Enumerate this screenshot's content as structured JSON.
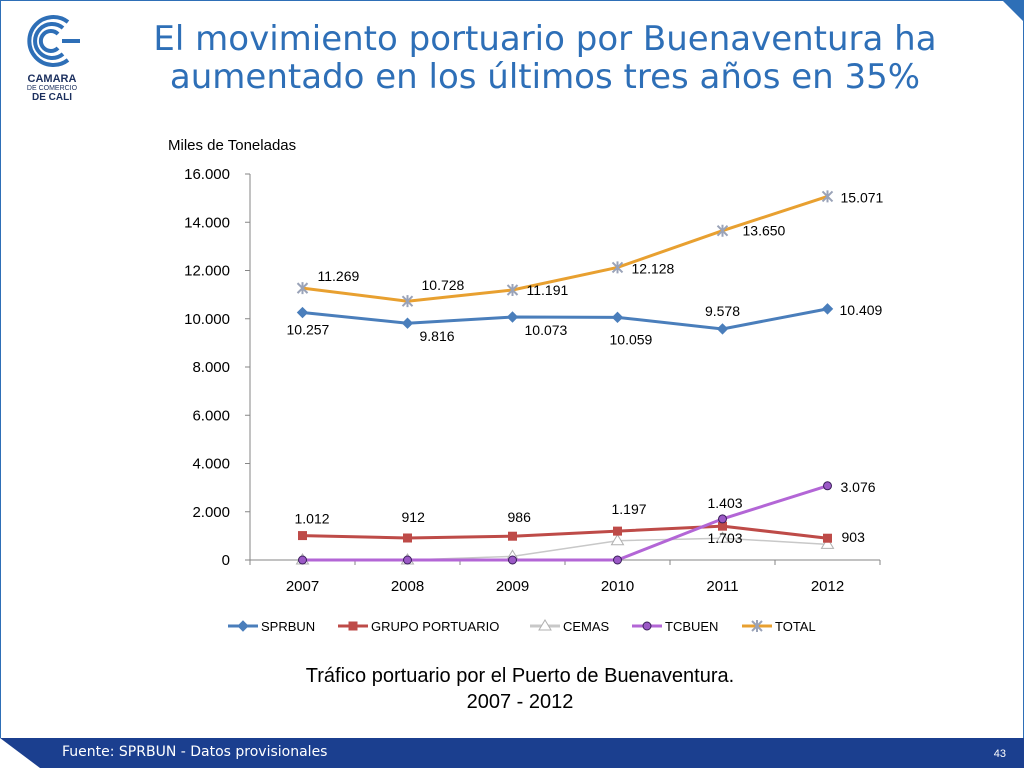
{
  "slide": {
    "title_line1": "El movimiento portuario por Buenaventura ha",
    "title_line2": "aumentado en los últimos tres años en 35%",
    "unit_label": "Miles de Toneladas",
    "caption_line1": "Tráfico portuario por el Puerto de Buenaventura.",
    "caption_line2": "2007 - 2012",
    "source": "Fuente: SPRBUN - Datos provisionales",
    "page_number": "43",
    "logo": {
      "line1": "CAMARA",
      "line2": "DE COMERCIO",
      "line3": "DE CALI"
    }
  },
  "colors": {
    "title": "#2e6fb7",
    "footer": "#1b3f8f"
  },
  "chart_data": {
    "type": "line",
    "ylabel": "Miles de Toneladas",
    "ylim": [
      0,
      16000
    ],
    "yticks": [
      0,
      2000,
      4000,
      6000,
      8000,
      10000,
      12000,
      14000,
      16000
    ],
    "ytick_labels": [
      "0",
      "2.000",
      "4.000",
      "6.000",
      "8.000",
      "10.000",
      "12.000",
      "14.000",
      "16.000"
    ],
    "x": [
      "2007",
      "2008",
      "2009",
      "2010",
      "2011",
      "2012"
    ],
    "legend_position": "bottom",
    "series": [
      {
        "name": "SPRBUN",
        "color": "#4a7ebb",
        "marker": "diamond",
        "values": [
          10257,
          9816,
          10073,
          10059,
          9578,
          10409
        ],
        "labels": [
          "10.257",
          "9.816",
          "10.073",
          "10.059",
          "9.578",
          "10.409"
        ]
      },
      {
        "name": "GRUPO PORTUARIO",
        "color": "#be4b48",
        "marker": "square",
        "values": [
          1012,
          912,
          986,
          1197,
          1403,
          903
        ],
        "labels": [
          "1.012",
          "912",
          "986",
          "1.197",
          "1.403",
          "903"
        ]
      },
      {
        "name": "CEMAS",
        "color": "#c8c8c8",
        "marker": "triangle",
        "values": [
          0,
          0,
          150,
          800,
          900,
          650
        ],
        "labels": []
      },
      {
        "name": "TCBUEN",
        "color": "#b366d6",
        "marker": "circle",
        "values": [
          0,
          0,
          0,
          0,
          1703,
          3076
        ],
        "labels": [
          "",
          "",
          "",
          "",
          "1.703",
          "3.076"
        ]
      },
      {
        "name": "TOTAL",
        "color": "#e8a030",
        "marker": "star",
        "values": [
          11269,
          10728,
          11191,
          12128,
          13650,
          15071
        ],
        "labels": [
          "11.269",
          "10.728",
          "11.191",
          "12.128",
          "13.650",
          "15.071"
        ]
      }
    ]
  }
}
